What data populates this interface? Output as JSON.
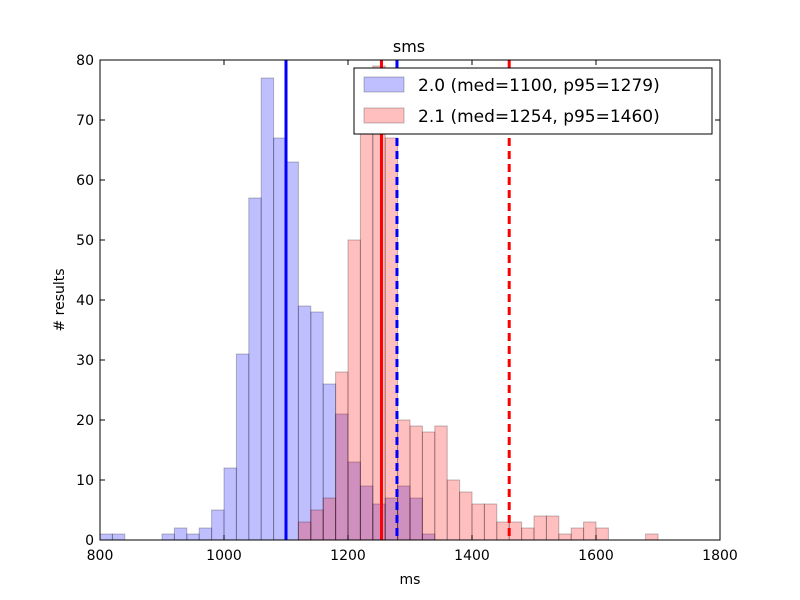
{
  "chart_data": {
    "type": "bar",
    "title": "sms",
    "xlabel": "ms",
    "ylabel": "# results",
    "xlim": [
      800,
      1800
    ],
    "ylim": [
      0,
      80
    ],
    "xticks": [
      800,
      1000,
      1200,
      1400,
      1600,
      1800
    ],
    "yticks": [
      0,
      10,
      20,
      30,
      40,
      50,
      60,
      70,
      80
    ],
    "bin_width": 20,
    "legend_position": "top-right",
    "series": [
      {
        "name": "2.0 (med=1100, p95=1279)",
        "color": "#0000ff",
        "bins": [
          {
            "x": 800,
            "count": 1
          },
          {
            "x": 820,
            "count": 1
          },
          {
            "x": 900,
            "count": 1
          },
          {
            "x": 920,
            "count": 2
          },
          {
            "x": 940,
            "count": 1
          },
          {
            "x": 960,
            "count": 2
          },
          {
            "x": 980,
            "count": 5
          },
          {
            "x": 1000,
            "count": 12
          },
          {
            "x": 1020,
            "count": 31
          },
          {
            "x": 1040,
            "count": 57
          },
          {
            "x": 1060,
            "count": 77
          },
          {
            "x": 1080,
            "count": 67
          },
          {
            "x": 1100,
            "count": 63
          },
          {
            "x": 1120,
            "count": 39
          },
          {
            "x": 1140,
            "count": 38
          },
          {
            "x": 1160,
            "count": 26
          },
          {
            "x": 1180,
            "count": 21
          },
          {
            "x": 1200,
            "count": 13
          },
          {
            "x": 1220,
            "count": 9
          },
          {
            "x": 1240,
            "count": 6
          },
          {
            "x": 1260,
            "count": 7
          },
          {
            "x": 1280,
            "count": 9
          },
          {
            "x": 1300,
            "count": 7
          },
          {
            "x": 1320,
            "count": 1
          }
        ],
        "median": 1100,
        "p95": 1279
      },
      {
        "name": "2.1 (med=1254, p95=1460)",
        "color": "#ff0000",
        "bins": [
          {
            "x": 1120,
            "count": 3
          },
          {
            "x": 1140,
            "count": 5
          },
          {
            "x": 1160,
            "count": 7
          },
          {
            "x": 1180,
            "count": 28
          },
          {
            "x": 1200,
            "count": 50
          },
          {
            "x": 1220,
            "count": 69
          },
          {
            "x": 1240,
            "count": 79
          },
          {
            "x": 1260,
            "count": 67
          },
          {
            "x": 1280,
            "count": 20
          },
          {
            "x": 1300,
            "count": 19
          },
          {
            "x": 1320,
            "count": 18
          },
          {
            "x": 1340,
            "count": 19
          },
          {
            "x": 1360,
            "count": 10
          },
          {
            "x": 1380,
            "count": 8
          },
          {
            "x": 1400,
            "count": 6
          },
          {
            "x": 1420,
            "count": 6
          },
          {
            "x": 1440,
            "count": 3
          },
          {
            "x": 1460,
            "count": 3
          },
          {
            "x": 1480,
            "count": 2
          },
          {
            "x": 1500,
            "count": 4
          },
          {
            "x": 1520,
            "count": 4
          },
          {
            "x": 1540,
            "count": 1
          },
          {
            "x": 1560,
            "count": 2
          },
          {
            "x": 1580,
            "count": 3
          },
          {
            "x": 1600,
            "count": 2
          },
          {
            "x": 1620,
            "count": 0
          },
          {
            "x": 1680,
            "count": 1
          }
        ],
        "median": 1254,
        "p95": 1460
      }
    ]
  }
}
